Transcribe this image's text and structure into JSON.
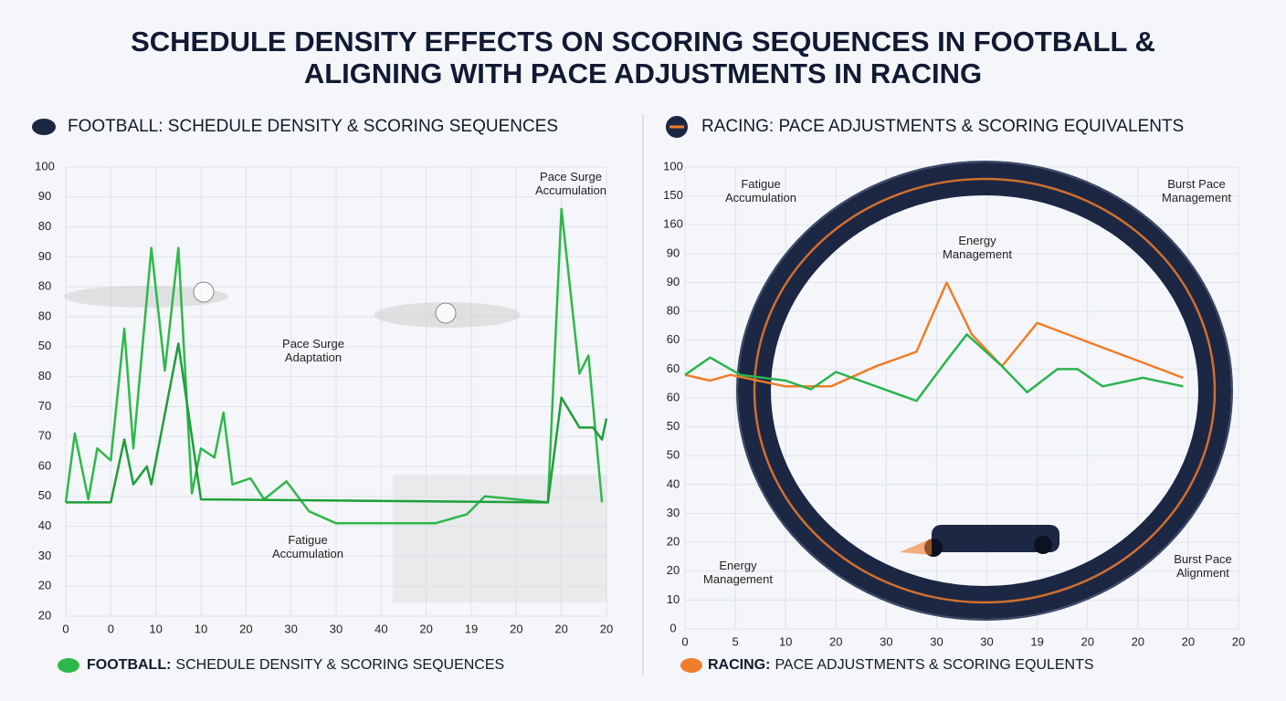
{
  "title": [
    "SCHEDULE DENSITY EFFECTS ON SCORING SEQUENCES IN FOOTBALL &",
    "ALIGNING WITH PACE ADJUSTMENTS IN RACING"
  ],
  "chart_data": [
    {
      "type": "line",
      "title": "FOOTBALL: SCHEDULE DENSITY & SCORING SEQUENCES",
      "footer_label": "FOOTBALL:",
      "footer_text": "SCHEDULE DENSITY & SCORING SEQUENCES",
      "annotations": [
        [
          "Pace Surge",
          "Accumulation"
        ],
        [
          "Pace Surge",
          "Adaptation"
        ],
        [
          "Fatigue",
          "Accumulation"
        ]
      ],
      "xlim": [
        0,
        12
      ],
      "ylim": [
        0,
        15
      ],
      "grid": true,
      "xticks": [
        0,
        {
          "value": 1,
          "label": "0"
        },
        {
          "value": 2,
          "label": "10"
        },
        {
          "value": 3,
          "label": "10"
        },
        {
          "value": 4,
          "label": "20"
        },
        {
          "value": 5,
          "label": "30"
        },
        {
          "value": 6,
          "label": "30"
        },
        {
          "value": 7,
          "label": "40"
        },
        {
          "value": 8,
          "label": "20"
        },
        {
          "value": 9,
          "label": "19"
        },
        {
          "value": 10,
          "label": "20"
        },
        {
          "value": 11,
          "label": "20"
        },
        {
          "value": 12,
          "label": "20"
        }
      ],
      "yticks": [
        {
          "value": 0,
          "label": "20"
        },
        {
          "value": 1,
          "label": "20"
        },
        {
          "value": 2,
          "label": "30"
        },
        {
          "value": 3,
          "label": "40"
        },
        {
          "value": 4,
          "label": "50"
        },
        {
          "value": 5,
          "label": "60"
        },
        {
          "value": 6,
          "label": "70"
        },
        {
          "value": 7,
          "label": "70"
        },
        {
          "value": 8,
          "label": "80"
        },
        {
          "value": 9,
          "label": "50"
        },
        {
          "value": 10,
          "label": "80"
        },
        {
          "value": 11,
          "label": "80"
        },
        {
          "value": 12,
          "label": "90"
        },
        {
          "value": 13,
          "label": "80"
        },
        {
          "value": 14,
          "label": "90"
        },
        {
          "value": 15,
          "label": "100"
        }
      ],
      "series": [
        {
          "color": "#2fb84a",
          "x": [
            0,
            0.2,
            0.5,
            0.7,
            1.0,
            1.3,
            1.5,
            1.9,
            2.2,
            2.5,
            2.8,
            3.0,
            3.3,
            3.5,
            3.7,
            4.1,
            4.4,
            4.9,
            5.4,
            6.0,
            8.2,
            8.9,
            9.3,
            10.7,
            11.0,
            11.4,
            11.6,
            11.9
          ],
          "values": [
            3.8,
            6.1,
            3.9,
            5.6,
            5.2,
            9.6,
            5.6,
            12.3,
            8.2,
            12.3,
            4.1,
            5.6,
            5.3,
            6.8,
            4.4,
            4.6,
            3.9,
            4.5,
            3.5,
            3.1,
            3.1,
            3.4,
            4.0,
            3.8,
            13.6,
            8.1,
            8.7,
            3.8
          ]
        },
        {
          "color": "#1f9e3a",
          "x": [
            0,
            1.0,
            1.3,
            1.5,
            1.8,
            1.9,
            2.5,
            3.0,
            10.7,
            11.0,
            11.4,
            11.7,
            11.9,
            12.0
          ],
          "values": [
            3.8,
            3.8,
            5.9,
            4.4,
            5.0,
            4.4,
            9.1,
            3.9,
            3.8,
            7.3,
            6.3,
            6.3,
            5.9,
            6.6
          ]
        }
      ]
    },
    {
      "type": "line",
      "title": "RACING: PACE ADJUSTMENTS & SCORING EQUIVALENTS",
      "footer_label": "RACING:",
      "footer_text": "PACE ADJUSTMENTS & SCORING EQULENTS",
      "annotations": [
        [
          "Fatigue",
          "Accumulation"
        ],
        [
          "Energy",
          "Management"
        ],
        [
          "Burst Pace",
          "Management"
        ],
        [
          "Energy",
          "Management"
        ],
        [
          "Burst Pace",
          "Alignment"
        ]
      ],
      "xlim": [
        0,
        11
      ],
      "ylim": [
        0,
        16
      ],
      "grid": true,
      "xticks": [
        0,
        {
          "value": 1,
          "label": "5"
        },
        {
          "value": 2,
          "label": "10"
        },
        {
          "value": 3,
          "label": "20"
        },
        {
          "value": 4,
          "label": "30"
        },
        {
          "value": 5,
          "label": "30"
        },
        {
          "value": 6,
          "label": "30"
        },
        {
          "value": 7,
          "label": "19"
        },
        {
          "value": 8,
          "label": "20"
        },
        {
          "value": 9,
          "label": "20"
        },
        {
          "value": 10,
          "label": "20"
        },
        {
          "value": 11,
          "label": "20"
        }
      ],
      "yticks": [
        0,
        {
          "value": 1,
          "label": "10"
        },
        {
          "value": 2,
          "label": "20"
        },
        {
          "value": 3,
          "label": "20"
        },
        {
          "value": 4,
          "label": "30"
        },
        {
          "value": 5,
          "label": "40"
        },
        {
          "value": 6,
          "label": "50"
        },
        {
          "value": 7,
          "label": "50"
        },
        {
          "value": 8,
          "label": "60"
        },
        {
          "value": 9,
          "label": "60"
        },
        {
          "value": 10,
          "label": "60"
        },
        {
          "value": 11,
          "label": "80"
        },
        {
          "value": 12,
          "label": "90"
        },
        {
          "value": 13,
          "label": "90"
        },
        {
          "value": 14,
          "label": "160"
        },
        {
          "value": 15,
          "label": "150"
        },
        {
          "value": 16,
          "label": "100"
        }
      ],
      "series": [
        {
          "color": "#f07d2a",
          "x": [
            0,
            0.5,
            0.9,
            2.0,
            2.9,
            3.8,
            4.6,
            5.2,
            5.7,
            6.3,
            7.0,
            9.9
          ],
          "values": [
            8.8,
            8.6,
            8.8,
            8.4,
            8.4,
            9.1,
            9.6,
            12.0,
            10.2,
            9.1,
            10.6,
            8.7
          ]
        },
        {
          "color": "#2bb34f",
          "x": [
            0,
            0.5,
            1.1,
            2.0,
            2.5,
            3.0,
            4.6,
            5.2,
            5.6,
            6.3,
            6.8,
            7.4,
            7.8,
            8.3,
            9.1,
            9.9
          ],
          "values": [
            8.8,
            9.4,
            8.8,
            8.6,
            8.3,
            8.9,
            7.9,
            9.3,
            10.2,
            9.1,
            8.2,
            9.0,
            9.0,
            8.4,
            8.7,
            8.4
          ]
        }
      ]
    }
  ]
}
